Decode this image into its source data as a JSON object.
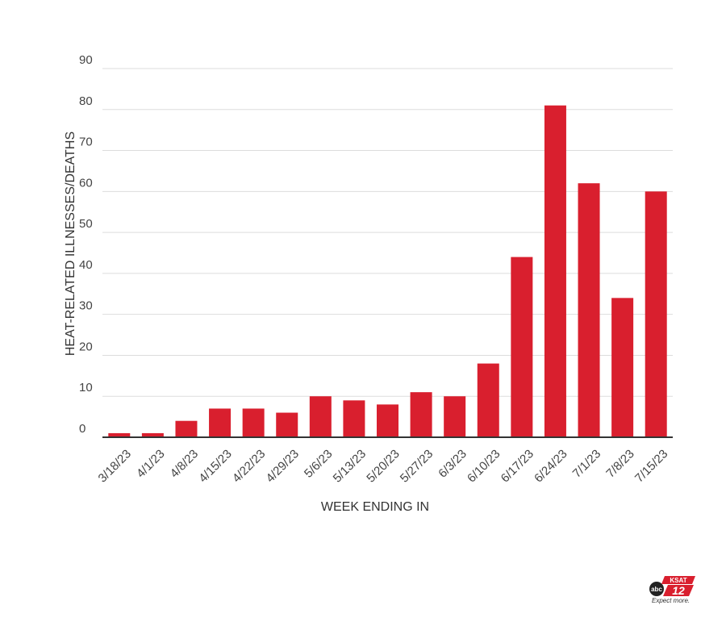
{
  "chart_data": {
    "type": "bar",
    "categories": [
      "3/18/23",
      "4/1/23",
      "4/8/23",
      "4/15/23",
      "4/22/23",
      "4/29/23",
      "5/6/23",
      "5/13/23",
      "5/20/23",
      "5/27/23",
      "6/3/23",
      "6/10/23",
      "6/17/23",
      "6/24/23",
      "7/1/23",
      "7/8/23",
      "7/15/23"
    ],
    "values": [
      1,
      1,
      4,
      7,
      7,
      6,
      10,
      9,
      8,
      11,
      10,
      18,
      44,
      81,
      62,
      34,
      60
    ],
    "xlabel": "WEEK ENDING IN",
    "ylabel": "HEAT-RELATED ILLNESSES/DEATHS",
    "ylim": [
      0,
      90
    ],
    "yticks": [
      0,
      10,
      20,
      30,
      40,
      50,
      60,
      70,
      80,
      90
    ],
    "grid": true,
    "bar_color": "#d91f2e"
  },
  "logo": {
    "station": "KSAT 12",
    "tagline": "Expect more."
  }
}
